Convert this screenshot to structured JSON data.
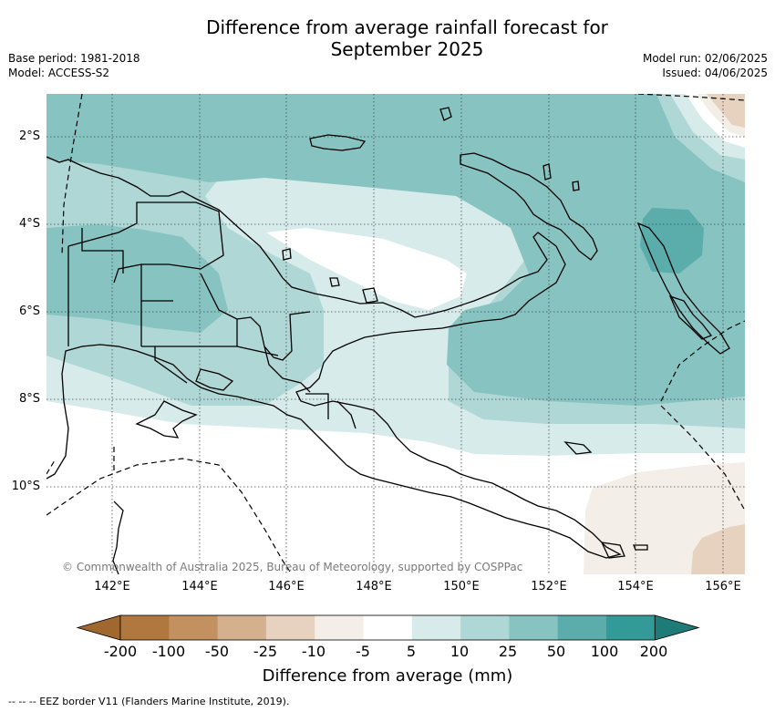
{
  "header": {
    "title_line1": "Difference from average rainfall forecast for",
    "title_line2": "September 2025",
    "base_period": "Base period: 1981-2018",
    "model": "Model: ACCESS-S2",
    "model_run": "Model run: 02/06/2025",
    "issued": "Issued: 04/06/2025"
  },
  "map": {
    "lat_labels": [
      "2°S",
      "4°S",
      "6°S",
      "8°S",
      "10°S"
    ],
    "lon_labels": [
      "142°E",
      "144°E",
      "146°E",
      "148°E",
      "150°E",
      "152°E",
      "154°E",
      "156°E"
    ],
    "copyright": "© Commonwealth of Australia 2025, Bureau of Meteorology, supported by COSPPac"
  },
  "legend": {
    "title": "Difference from average (mm)",
    "ticks": [
      "-200",
      "-100",
      "-50",
      "-25",
      "-10",
      "-5",
      "5",
      "10",
      "25",
      "50",
      "100",
      "200"
    ],
    "colors": [
      "#a0672f",
      "#b0773f",
      "#c2915f",
      "#d4b08e",
      "#e7d1bf",
      "#f3eee8",
      "#ffffff",
      "#d6ebea",
      "#aed7d6",
      "#87c3c1",
      "#5aadab",
      "#349a97",
      "#1f7b78"
    ]
  },
  "footnote": "--  --  -- EEZ border V11 (Flanders Marine Institute, 2019)."
}
